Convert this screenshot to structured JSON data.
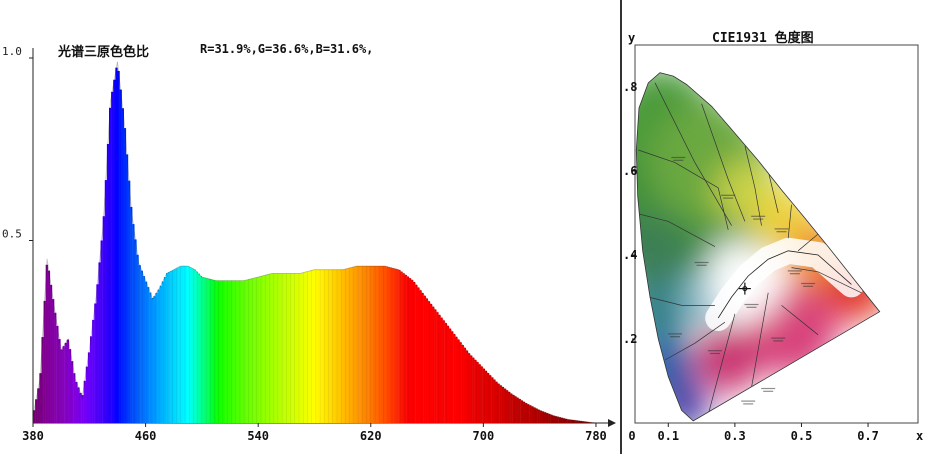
{
  "chart_data": [
    {
      "type": "area",
      "title": "光谱三原色色比",
      "subtitle": "R=31.9%,G=36.6%,B=31.6%,",
      "x_ticks": [
        "380",
        "460",
        "540",
        "620",
        "700",
        "780"
      ],
      "y_ticks": [
        "1.0",
        "0.5"
      ],
      "xlim": [
        380,
        785
      ],
      "ylim": [
        0,
        1.0
      ],
      "grid": false,
      "colored_by_wavelength": true,
      "x": [
        380,
        385,
        390,
        395,
        400,
        405,
        410,
        415,
        420,
        425,
        430,
        435,
        440,
        445,
        450,
        455,
        460,
        465,
        470,
        475,
        480,
        485,
        490,
        495,
        500,
        510,
        520,
        530,
        540,
        550,
        560,
        570,
        580,
        590,
        600,
        610,
        620,
        630,
        640,
        650,
        660,
        670,
        680,
        690,
        700,
        710,
        720,
        730,
        740,
        750,
        760,
        770,
        780
      ],
      "values": [
        0.02,
        0.12,
        0.45,
        0.32,
        0.2,
        0.23,
        0.12,
        0.07,
        0.2,
        0.35,
        0.55,
        0.88,
        0.99,
        0.82,
        0.58,
        0.44,
        0.39,
        0.34,
        0.37,
        0.41,
        0.42,
        0.43,
        0.43,
        0.42,
        0.4,
        0.39,
        0.39,
        0.39,
        0.4,
        0.41,
        0.41,
        0.41,
        0.42,
        0.42,
        0.42,
        0.43,
        0.43,
        0.43,
        0.42,
        0.39,
        0.34,
        0.29,
        0.24,
        0.19,
        0.15,
        0.11,
        0.08,
        0.055,
        0.035,
        0.02,
        0.01,
        0.005,
        0.0
      ]
    },
    {
      "type": "scatter",
      "title": "CIE1931 色度图",
      "xlabel": "x",
      "ylabel": "y",
      "x_ticks": [
        "0",
        "0.1",
        "0.3",
        "0.5",
        "0.7"
      ],
      "y_ticks": [
        ".8",
        ".6",
        ".4",
        ".2"
      ],
      "xlim": [
        0,
        0.85
      ],
      "ylim": [
        0,
        0.9
      ],
      "point": {
        "x": 0.33,
        "y": 0.32
      }
    }
  ]
}
